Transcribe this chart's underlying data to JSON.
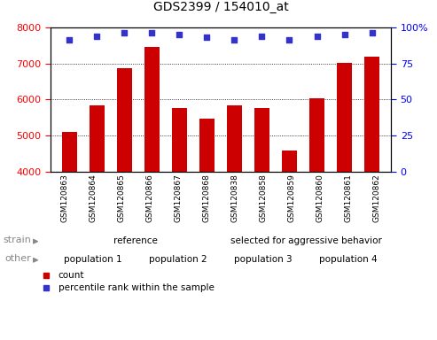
{
  "title": "GDS2399 / 154010_at",
  "samples": [
    "GSM120863",
    "GSM120864",
    "GSM120865",
    "GSM120866",
    "GSM120867",
    "GSM120868",
    "GSM120838",
    "GSM120858",
    "GSM120859",
    "GSM120860",
    "GSM120861",
    "GSM120862"
  ],
  "counts": [
    5090,
    5830,
    6860,
    7450,
    5760,
    5470,
    5840,
    5770,
    4580,
    6040,
    7020,
    7190
  ],
  "percentiles": [
    91,
    94,
    96,
    96,
    95,
    93,
    91,
    94,
    91,
    94,
    95,
    96
  ],
  "bar_color": "#cc0000",
  "dot_color": "#3333cc",
  "ylim_left": [
    4000,
    8000
  ],
  "ylim_right": [
    0,
    100
  ],
  "yticks_left": [
    4000,
    5000,
    6000,
    7000,
    8000
  ],
  "yticks_right": [
    0,
    25,
    50,
    75,
    100
  ],
  "strain_groups": [
    {
      "label": "reference",
      "start": 0,
      "end": 6,
      "color": "#aaffaa"
    },
    {
      "label": "selected for aggressive behavior",
      "start": 6,
      "end": 12,
      "color": "#66dd66"
    }
  ],
  "other_groups": [
    {
      "label": "population 1",
      "start": 0,
      "end": 3,
      "color": "#ee82ee"
    },
    {
      "label": "population 2",
      "start": 3,
      "end": 6,
      "color": "#cc55cc"
    },
    {
      "label": "population 3",
      "start": 6,
      "end": 9,
      "color": "#ee82ee"
    },
    {
      "label": "population 4",
      "start": 9,
      "end": 12,
      "color": "#cc55cc"
    }
  ],
  "legend_items": [
    {
      "label": "count",
      "color": "#cc0000"
    },
    {
      "label": "percentile rank within the sample",
      "color": "#3333cc"
    }
  ],
  "xtick_bg": "#dddddd"
}
